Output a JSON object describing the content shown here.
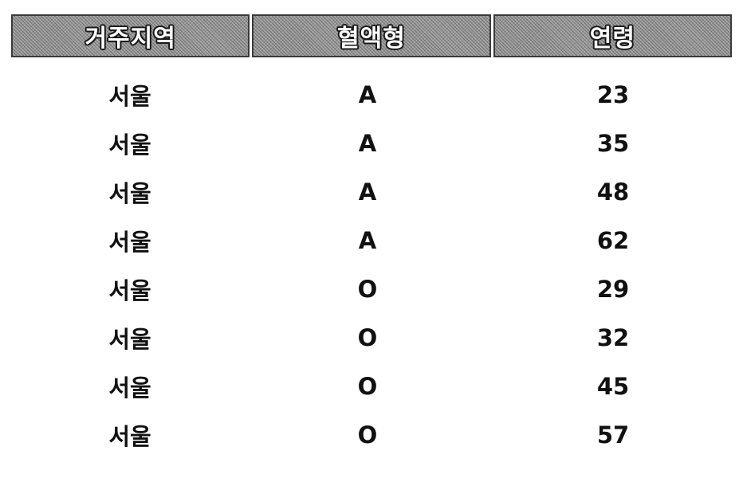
{
  "table": {
    "headers": [
      "거주지역",
      "혈액형",
      "연령"
    ],
    "rows": [
      [
        "서울",
        "A",
        "23"
      ],
      [
        "서울",
        "A",
        "35"
      ],
      [
        "서울",
        "A",
        "48"
      ],
      [
        "서울",
        "A",
        "62"
      ],
      [
        "서울",
        "O",
        "29"
      ],
      [
        "서울",
        "O",
        "32"
      ],
      [
        "서울",
        "O",
        "45"
      ],
      [
        "서울",
        "O",
        "57"
      ]
    ]
  }
}
